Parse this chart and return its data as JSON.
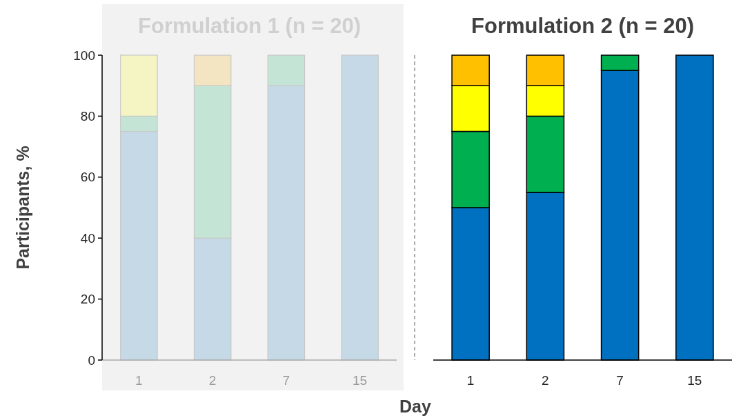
{
  "chart_data": [
    {
      "type": "bar",
      "title": "Formulation 1 (n = 20)",
      "ylabel": "Participants, %",
      "categories": [
        "1",
        "2",
        "7",
        "15"
      ],
      "stacked": true,
      "ylim": [
        0,
        100
      ],
      "yticks": [
        0,
        20,
        40,
        60,
        80,
        100
      ],
      "series": [
        {
          "color": "#c5d9e6",
          "values": [
            75,
            40,
            90,
            100
          ]
        },
        {
          "color": "#c4e5d6",
          "values": [
            5,
            50,
            10,
            null
          ]
        },
        {
          "color": "#f5f5c4",
          "values": [
            20,
            null,
            null,
            null
          ]
        },
        {
          "color": "#f3e4c2",
          "values": [
            null,
            10,
            null,
            null
          ]
        }
      ]
    },
    {
      "type": "bar",
      "title": "Formulation 2 (n = 20)",
      "xlabel": "Day",
      "categories": [
        "1",
        "2",
        "7",
        "15"
      ],
      "stacked": true,
      "ylim": [
        0,
        100
      ],
      "tick_labels": "x",
      "series": [
        {
          "color": "#0070c0",
          "values": [
            50,
            55,
            95,
            100
          ]
        },
        {
          "color": "#00b050",
          "values": [
            25,
            25,
            5,
            null
          ]
        },
        {
          "color": "#ffff00",
          "values": [
            15,
            10,
            null,
            null
          ]
        },
        {
          "color": "#ffc000",
          "values": [
            10,
            10,
            null,
            null
          ]
        }
      ]
    }
  ]
}
